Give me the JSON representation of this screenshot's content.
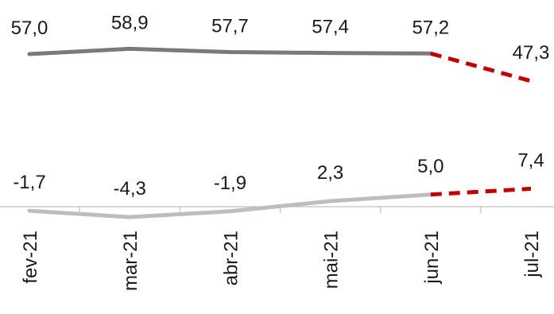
{
  "chart_data": {
    "type": "line",
    "categories": [
      "fev-21",
      "mar-21",
      "abr-21",
      "mai-21",
      "jun-21",
      "jul-21"
    ],
    "series": [
      {
        "values": [
          57.0,
          58.9,
          57.7,
          57.4,
          57.2,
          47.3
        ],
        "labels": [
          "57,0",
          "58,9",
          "57,7",
          "57,4",
          "57,2",
          "47,3"
        ],
        "color": "#7a7a7a",
        "projection_color": "#c00000"
      },
      {
        "values": [
          -1.7,
          -4.3,
          -1.9,
          2.3,
          5.0,
          7.4
        ],
        "labels": [
          "-1,7",
          "-4,3",
          "-1,9",
          "2,3",
          "5,0",
          "7,4"
        ],
        "color": "#bdbdbd",
        "projection_color": "#c00000"
      }
    ],
    "projection_from_index": 4,
    "axis": {
      "zero_line": true,
      "tick_label_rotation": "vertical"
    },
    "grid": false,
    "legend": "none"
  }
}
